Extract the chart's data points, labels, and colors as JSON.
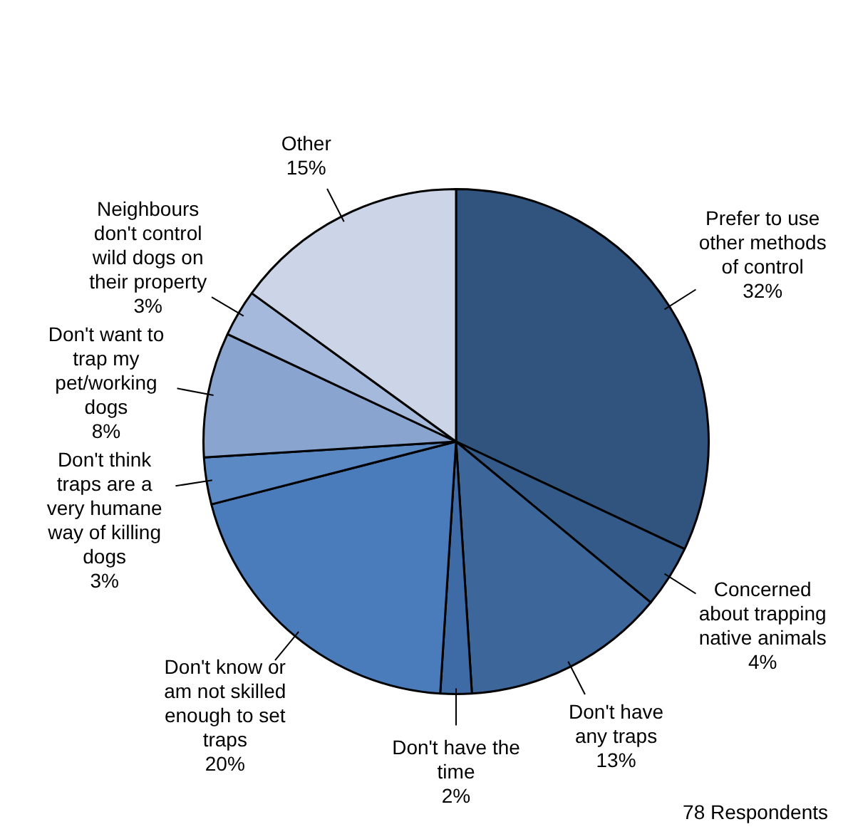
{
  "chart_data": {
    "type": "pie",
    "categories": [
      "Prefer to use other methods of control",
      "Concerned about trapping native animals",
      "Don't have any traps",
      "Don't have the time",
      "Don't know or am not skilled enough to set traps",
      "Don't think traps are a very humane way of killing dogs",
      "Don't want to trap my pet/working dogs",
      "Neighbours don't control wild dogs on their property",
      "Other"
    ],
    "values": [
      32,
      4,
      13,
      2,
      20,
      3,
      8,
      3,
      15
    ],
    "value_labels": [
      "32%",
      "4%",
      "13%",
      "2%",
      "20%",
      "3%",
      "8%",
      "3%",
      "15%"
    ],
    "colors": [
      "#30547e",
      "#335a89",
      "#3d679b",
      "#3e6aa5",
      "#4a7cbb",
      "#5b89c3",
      "#88a4cf",
      "#a5b9dc",
      "#cbd5e7"
    ],
    "annotations": [
      "78 Respondents"
    ]
  }
}
